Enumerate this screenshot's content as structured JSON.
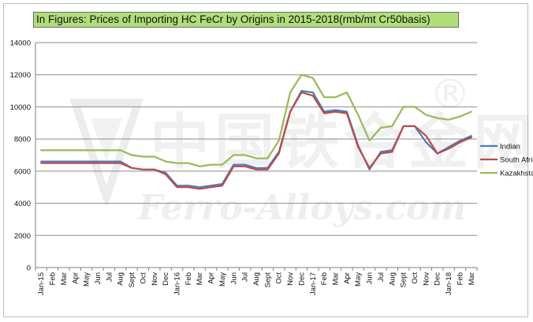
{
  "chart_data": {
    "type": "line",
    "title": "In Figures: Prices of Importing HC FeCr by Origins in 2015-2018(rmb/mt Cr50basis)",
    "categories": [
      "Jan-15",
      "Feb",
      "Mar",
      "Apr",
      "May",
      "Jun",
      "Jul",
      "Aug",
      "Sept",
      "Oct",
      "Nov",
      "Dec",
      "Jan-16",
      "Feb",
      "Mar",
      "Apr",
      "May",
      "Jun",
      "Jul",
      "Aug",
      "Sept",
      "Oct",
      "Nov",
      "Dec",
      "Jan-17",
      "Feb",
      "Mar",
      "Apr",
      "May",
      "Jun",
      "Jul",
      "Aug",
      "Sept",
      "Oct",
      "Nov",
      "Dec",
      "Jan-18",
      "Feb",
      "Mar"
    ],
    "ylim": [
      0,
      14000
    ],
    "yticks": [
      0,
      2000,
      4000,
      6000,
      8000,
      10000,
      12000,
      14000
    ],
    "grid": true,
    "legend_position": "right",
    "series": [
      {
        "name": "Indian",
        "color": "#4a7ebb",
        "values": [
          6600,
          6600,
          6600,
          6600,
          6600,
          6600,
          6600,
          6600,
          6200,
          6100,
          6100,
          5900,
          5100,
          5100,
          5000,
          5100,
          5200,
          6400,
          6400,
          6200,
          6200,
          7200,
          9700,
          11000,
          10900,
          9700,
          9800,
          9700,
          7600,
          6100,
          7200,
          7300,
          8800,
          8800,
          7800,
          7100,
          7500,
          7900,
          8200
        ]
      },
      {
        "name": "South Africa",
        "color": "#be4b48",
        "values": [
          6500,
          6500,
          6500,
          6500,
          6500,
          6500,
          6500,
          6500,
          6200,
          6100,
          6100,
          5800,
          5000,
          5000,
          4900,
          5000,
          5100,
          6300,
          6300,
          6100,
          6100,
          7100,
          9700,
          10900,
          10700,
          9600,
          9700,
          9600,
          7500,
          6200,
          7100,
          7200,
          8800,
          8800,
          8200,
          7100,
          7400,
          7800,
          8100
        ]
      },
      {
        "name": "Kazakhstan",
        "color": "#98b954",
        "values": [
          7300,
          7300,
          7300,
          7300,
          7300,
          7300,
          7300,
          7300,
          7000,
          6900,
          6900,
          6600,
          6500,
          6500,
          6300,
          6400,
          6400,
          7000,
          7000,
          6800,
          6800,
          7900,
          10900,
          12000,
          11800,
          10600,
          10600,
          10900,
          9500,
          7900,
          8700,
          8800,
          10000,
          10000,
          9500,
          9300,
          9200,
          9400,
          9700
        ]
      }
    ]
  },
  "watermark": {
    "chinese": "中国铁合金网",
    "english": "Ferro-Alloys.com",
    "mark": "®"
  }
}
